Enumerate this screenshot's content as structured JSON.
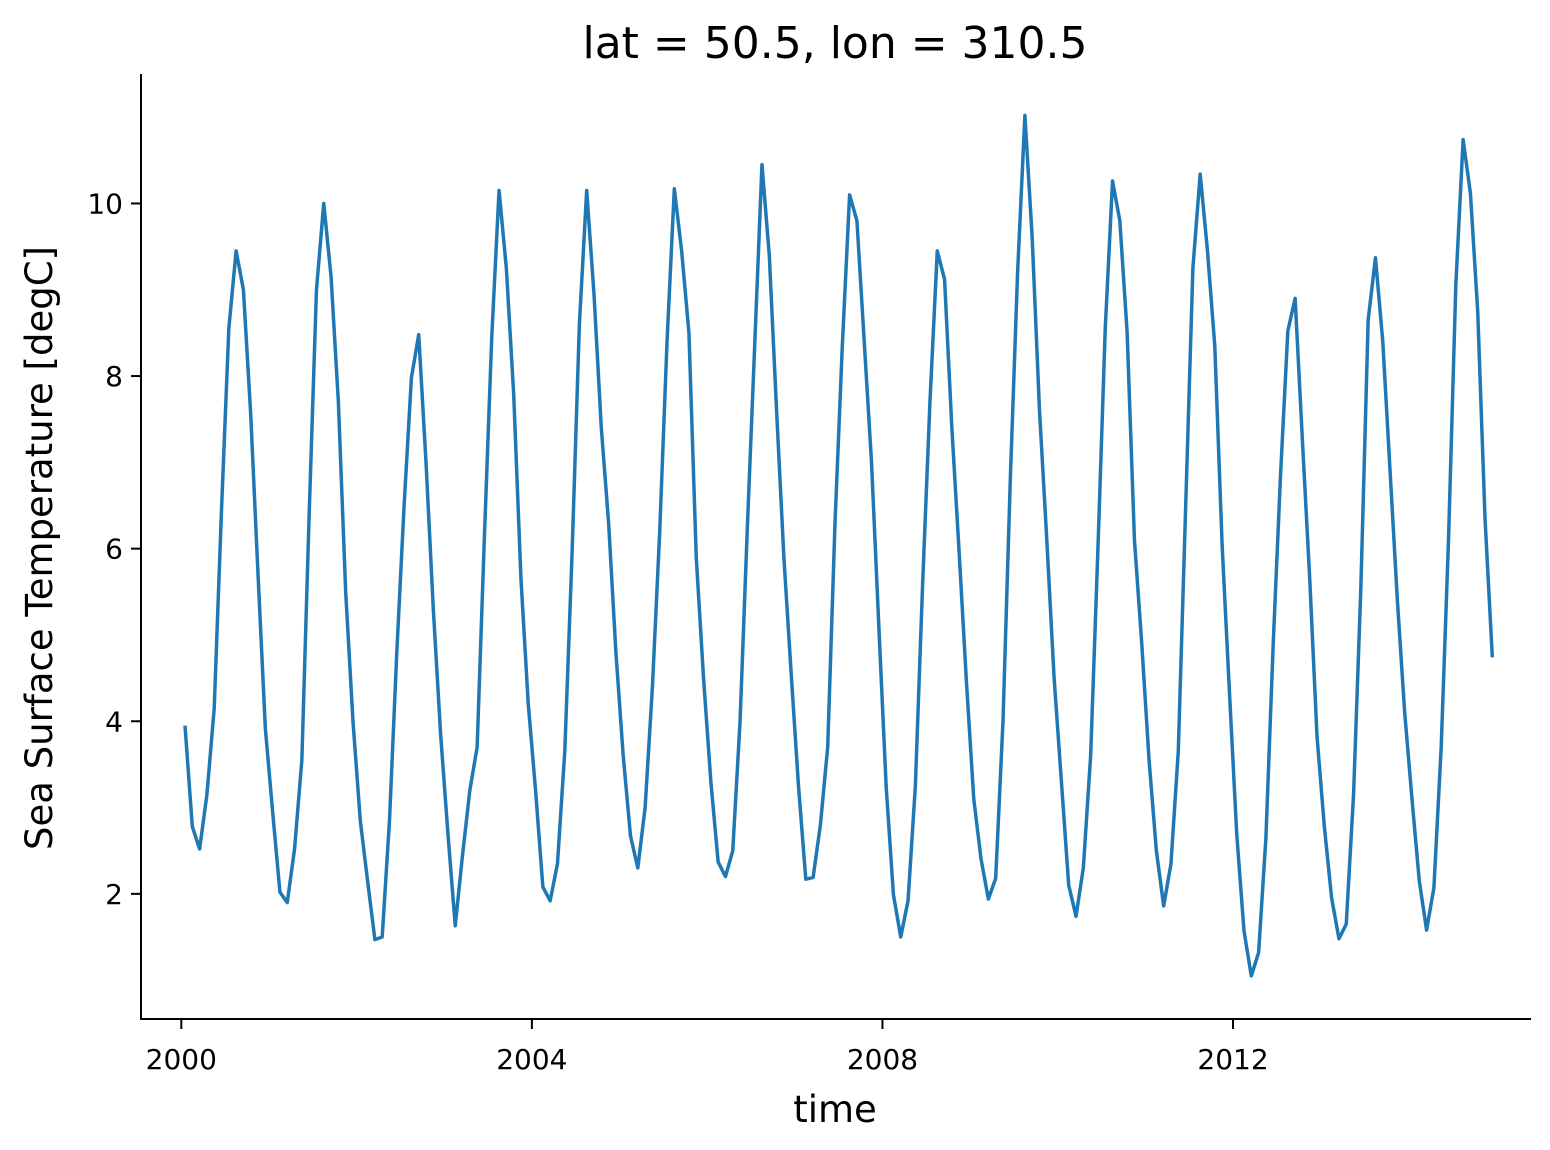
{
  "chart_data": {
    "type": "line",
    "title": "lat = 50.5, lon = 310.5",
    "xlabel": "time",
    "ylabel": "Sea Surface Temperature [degC]",
    "x_unit": "year",
    "x_start": 2000.042,
    "x_step_months": 1,
    "xlim": [
      1999.54,
      2015.4
    ],
    "ylim": [
      0.55,
      11.5
    ],
    "x_ticks": [
      2000,
      2004,
      2008,
      2012
    ],
    "y_ticks": [
      2,
      4,
      6,
      8,
      10
    ],
    "grid": false,
    "color": "#1f77b4",
    "series": [
      {
        "values": [
          3.95,
          2.78,
          2.52,
          3.15,
          4.15,
          6.45,
          8.55,
          9.45,
          9.0,
          7.55,
          5.7,
          3.92,
          2.95,
          2.02,
          1.9,
          2.52,
          3.55,
          6.4,
          9.0,
          10.0,
          9.15,
          7.7,
          5.5,
          4.0,
          2.85,
          2.15,
          1.47,
          1.5,
          2.85,
          4.8,
          6.5,
          7.98,
          8.48,
          7.0,
          5.3,
          3.85,
          2.7,
          1.63,
          2.45,
          3.2,
          3.7,
          6.15,
          8.45,
          10.15,
          9.25,
          7.8,
          5.65,
          4.2,
          3.2,
          2.08,
          1.92,
          2.35,
          3.65,
          5.95,
          8.6,
          10.15,
          8.95,
          7.4,
          6.3,
          4.8,
          3.6,
          2.67,
          2.3,
          3.0,
          4.4,
          6.2,
          8.4,
          10.17,
          9.45,
          8.5,
          5.9,
          4.5,
          3.3,
          2.37,
          2.2,
          2.5,
          4.0,
          6.25,
          8.35,
          10.45,
          9.4,
          7.6,
          5.9,
          4.55,
          3.25,
          2.17,
          2.19,
          2.8,
          3.7,
          6.3,
          8.35,
          10.1,
          9.8,
          8.4,
          7.0,
          5.1,
          3.25,
          1.99,
          1.5,
          1.92,
          3.25,
          5.6,
          7.7,
          9.45,
          9.12,
          7.4,
          5.95,
          4.45,
          3.1,
          2.4,
          1.94,
          2.18,
          4.0,
          6.8,
          9.2,
          11.02,
          9.6,
          7.6,
          6.1,
          4.5,
          3.3,
          2.1,
          1.74,
          2.3,
          3.6,
          6.0,
          8.55,
          10.26,
          9.8,
          8.5,
          6.1,
          4.9,
          3.55,
          2.5,
          1.86,
          2.35,
          3.65,
          6.45,
          9.25,
          10.34,
          9.45,
          8.35,
          6.05,
          4.35,
          2.7,
          1.57,
          1.05,
          1.32,
          2.65,
          4.9,
          6.85,
          8.52,
          8.9,
          7.25,
          5.65,
          3.82,
          2.78,
          1.95,
          1.48,
          1.65,
          3.15,
          5.55,
          8.65,
          9.37,
          8.4,
          6.9,
          5.4,
          4.1,
          3.1,
          2.15,
          1.58,
          2.07,
          3.7,
          6.1,
          9.05,
          10.74,
          10.12,
          8.75,
          6.35,
          4.74
        ]
      }
    ]
  }
}
